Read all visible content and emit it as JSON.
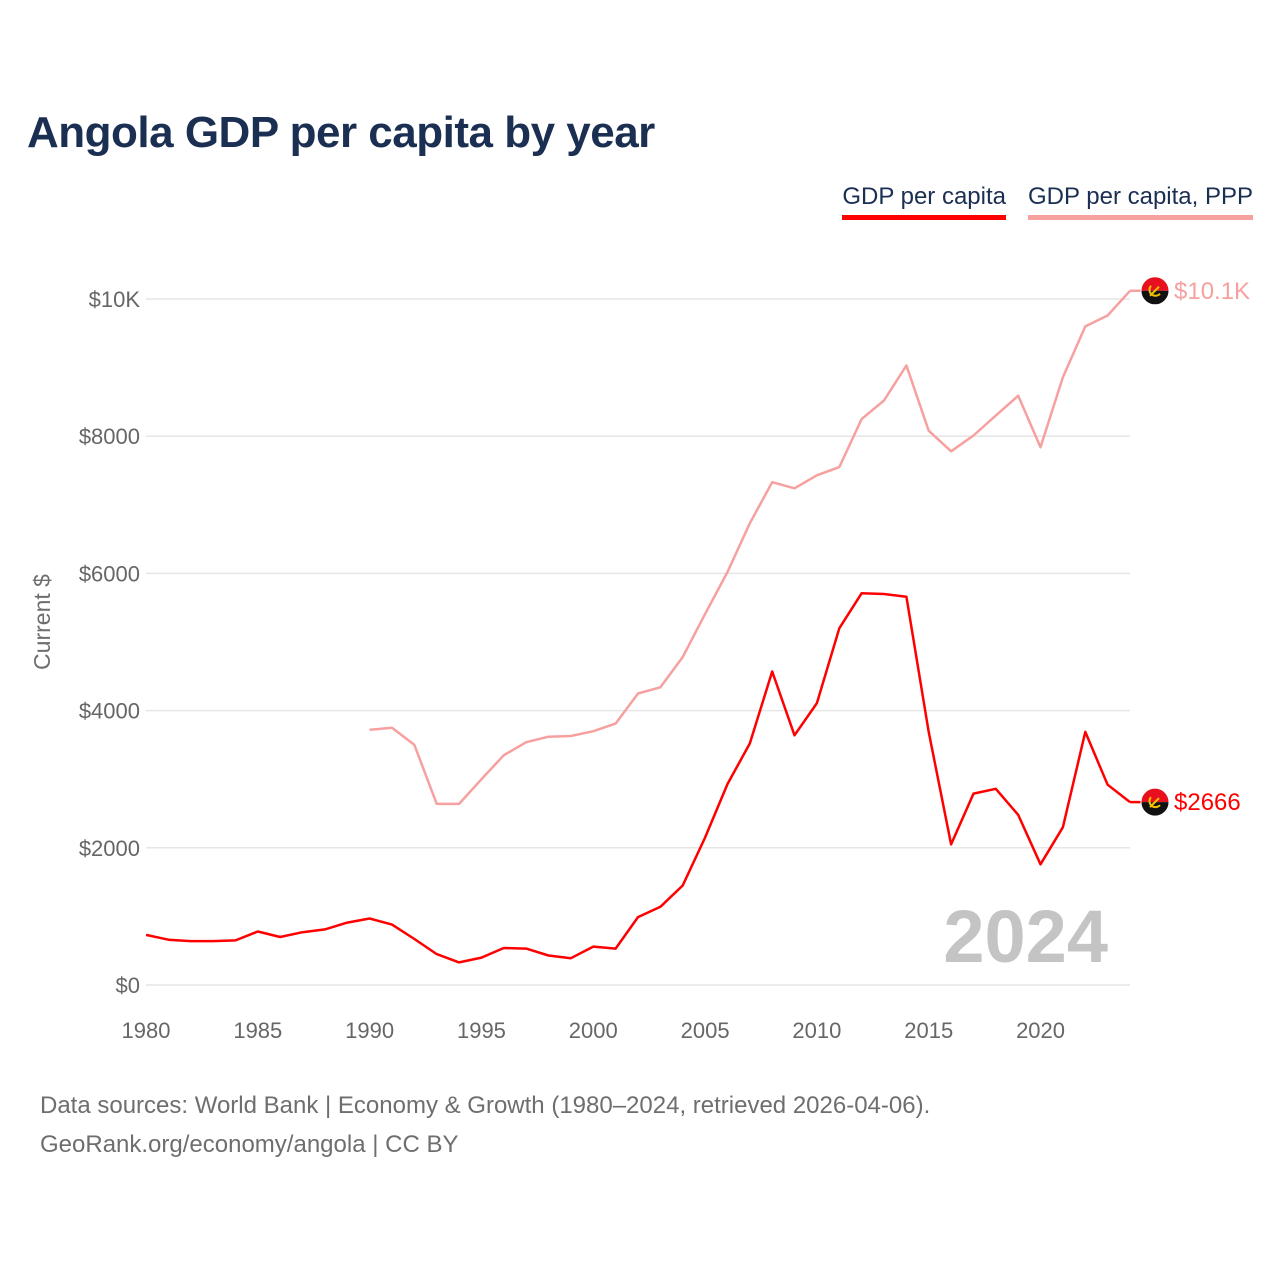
{
  "title": "Angola GDP per capita by year",
  "legend": {
    "gdp_label": "GDP per capita",
    "ppp_label": "GDP per capita, PPP"
  },
  "colors": {
    "gdp": "#ff0000",
    "ppp": "#f7a0a0",
    "title": "#1b2f52"
  },
  "current_year": "2024",
  "end_labels": {
    "ppp": "$10.1K",
    "gdp": "$2666"
  },
  "flag_icon": "angola-flag-icon",
  "footer": {
    "line1": "Data sources: World Bank | Economy & Growth (1980–2024, retrieved 2026-04-06).",
    "line2": "GeoRank.org/economy/angola | CC BY"
  },
  "chart_data": {
    "type": "line",
    "title": "Angola GDP per capita by year",
    "xlabel": "",
    "ylabel": "Current $",
    "xlim": [
      1980,
      2024
    ],
    "ylim": [
      0,
      10000
    ],
    "x_ticks": [
      1980,
      1985,
      1990,
      1995,
      2000,
      2005,
      2010,
      2015,
      2020
    ],
    "x_tick_labels": [
      "1980",
      "1985",
      "1990",
      "1995",
      "2000",
      "2005",
      "2010",
      "2015",
      "2020"
    ],
    "y_ticks": [
      0,
      2000,
      4000,
      6000,
      8000,
      10000
    ],
    "y_tick_labels": [
      "$0",
      "$2000",
      "$4000",
      "$6000",
      "$8000",
      "$10K"
    ],
    "grid": true,
    "legend_position": "top-right",
    "series": [
      {
        "name": "GDP per capita",
        "color": "#ff0000",
        "x": [
          1980,
          1981,
          1982,
          1983,
          1984,
          1985,
          1986,
          1987,
          1988,
          1989,
          1990,
          1991,
          1992,
          1993,
          1994,
          1995,
          1996,
          1997,
          1998,
          1999,
          2000,
          2001,
          2002,
          2003,
          2004,
          2005,
          2006,
          2007,
          2008,
          2009,
          2010,
          2011,
          2012,
          2013,
          2014,
          2015,
          2016,
          2017,
          2018,
          2019,
          2020,
          2021,
          2022,
          2023,
          2024
        ],
        "values": [
          730,
          660,
          640,
          640,
          650,
          780,
          700,
          770,
          810,
          910,
          970,
          880,
          670,
          450,
          330,
          400,
          540,
          530,
          430,
          390,
          560,
          530,
          990,
          1140,
          1450,
          2150,
          2930,
          3520,
          4570,
          3640,
          4110,
          5200,
          5710,
          5700,
          5660,
          3690,
          2050,
          2790,
          2860,
          2480,
          1760,
          2300,
          3690,
          2920,
          2666
        ]
      },
      {
        "name": "GDP per capita, PPP",
        "color": "#f7a0a0",
        "x": [
          1990,
          1991,
          1992,
          1993,
          1994,
          1995,
          1996,
          1997,
          1998,
          1999,
          2000,
          2001,
          2002,
          2003,
          2004,
          2005,
          2006,
          2007,
          2008,
          2009,
          2010,
          2011,
          2012,
          2013,
          2014,
          2015,
          2016,
          2017,
          2018,
          2019,
          2020,
          2021,
          2022,
          2023,
          2024
        ],
        "values": [
          3720,
          3750,
          3500,
          2640,
          2640,
          3000,
          3350,
          3540,
          3620,
          3630,
          3700,
          3810,
          4250,
          4340,
          4780,
          5410,
          6020,
          6730,
          7330,
          7240,
          7430,
          7550,
          8250,
          8520,
          9030,
          8080,
          7780,
          8010,
          8300,
          8590,
          7840,
          8860,
          9600,
          9760,
          10120
        ]
      }
    ]
  }
}
